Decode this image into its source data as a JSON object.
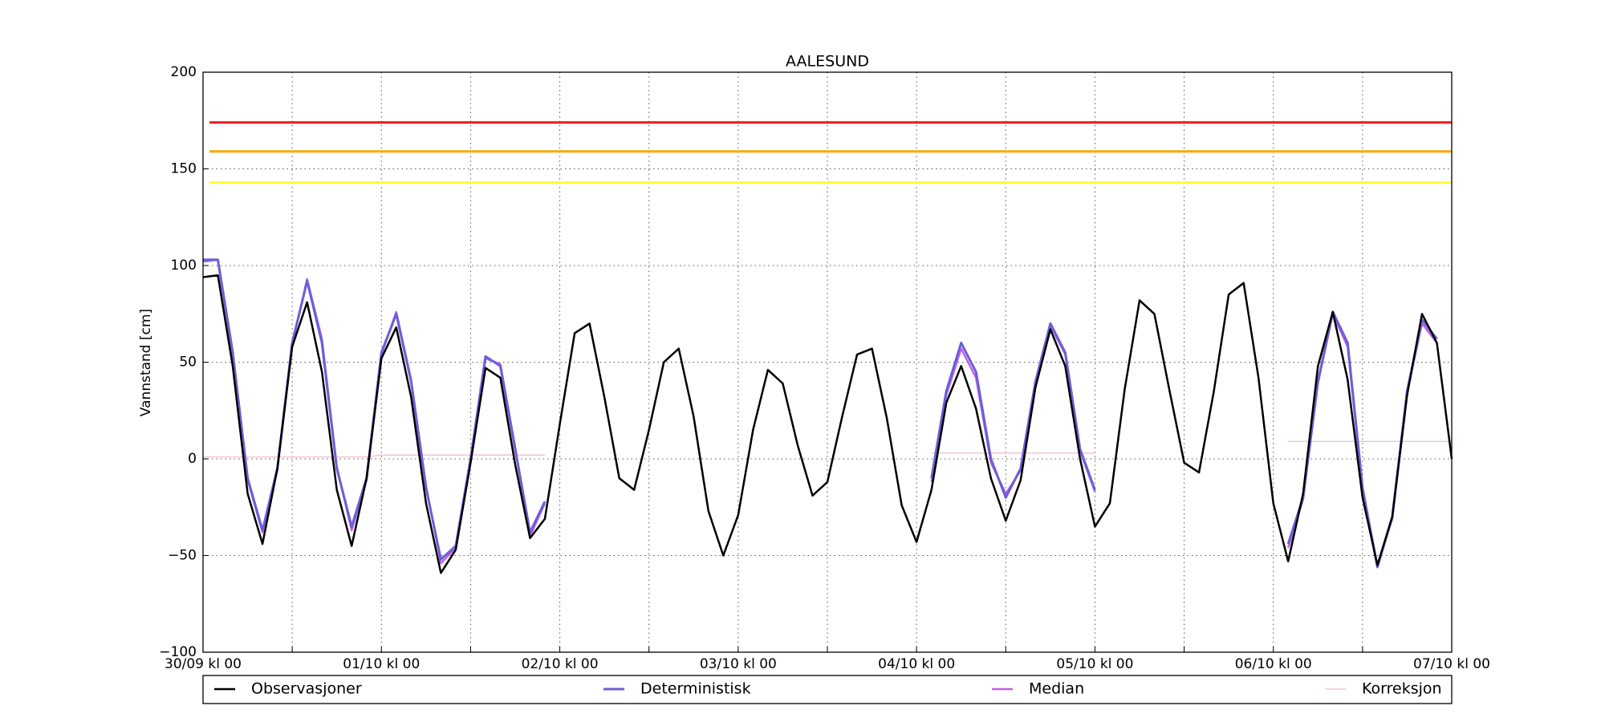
{
  "chart_data": {
    "type": "line",
    "title": "AALESUND",
    "y_label": "Vannstand [cm]",
    "x": [
      0,
      2,
      4,
      6,
      8,
      10,
      12,
      14,
      16,
      18,
      20,
      22,
      24,
      26,
      28,
      30,
      32,
      34,
      36,
      38,
      40,
      42,
      44,
      46,
      48,
      50,
      52,
      54,
      56,
      58,
      60,
      62,
      64,
      66,
      68,
      70,
      72,
      74,
      76,
      78,
      80,
      82,
      84,
      86,
      88,
      90,
      92,
      94,
      96,
      98,
      100,
      102,
      104,
      106,
      108,
      110,
      112,
      114,
      116,
      118,
      120,
      122,
      124,
      126,
      128,
      130,
      132,
      134,
      136,
      138,
      140,
      142,
      144,
      146,
      148,
      150,
      152,
      154,
      156,
      158,
      160,
      162,
      164,
      166,
      168
    ],
    "series": [
      {
        "name": "Observasjoner",
        "color": "#000000",
        "width": 2.5,
        "values": [
          94,
          95,
          48,
          -18,
          -44,
          -5,
          58,
          81,
          45,
          -16,
          -45,
          -10,
          52,
          68,
          32,
          -23,
          -59,
          -47,
          -2,
          47,
          42,
          -3,
          -41,
          -31,
          18,
          65,
          70,
          32,
          -10,
          -16,
          15,
          50,
          57,
          22,
          -27,
          -50,
          -29,
          15,
          46,
          39,
          7,
          -19,
          -12,
          22,
          54,
          57,
          21,
          -24,
          -43,
          -16,
          29,
          48,
          26,
          -10,
          -32,
          -11,
          37,
          67,
          48,
          0,
          -35,
          -23,
          36,
          82,
          75,
          36,
          -2,
          -7,
          35,
          85,
          91,
          42,
          -23,
          -53,
          -18,
          48,
          76,
          41,
          -20,
          -55,
          -30,
          33,
          75,
          60,
          0
        ]
      },
      {
        "name": "Deterministisk",
        "color": "#6a5fd8",
        "width": 3,
        "values": [
          103,
          103,
          55,
          -10,
          -37,
          -5,
          60,
          92,
          60,
          -5,
          -35,
          -10,
          55,
          75,
          40,
          -15,
          -52,
          -45,
          0,
          53,
          48,
          5,
          -38,
          -22,
          null,
          null,
          null,
          null,
          null,
          null,
          null,
          null,
          null,
          null,
          null,
          null,
          null,
          null,
          null,
          null,
          null,
          null,
          null,
          null,
          null,
          null,
          null,
          null,
          null,
          -10,
          35,
          60,
          45,
          0,
          -20,
          -5,
          40,
          70,
          55,
          5,
          -16,
          null,
          null,
          null,
          null,
          null,
          null,
          null,
          null,
          null,
          null,
          null,
          null,
          -44,
          -20,
          40,
          76,
          60,
          -15,
          -56,
          -30,
          35,
          72,
          62,
          null
        ]
      },
      {
        "name": "Median",
        "color": "#c060e0",
        "width": 2.5,
        "values": [
          102,
          103,
          54,
          -11,
          -38,
          -6,
          59,
          93,
          62,
          -4,
          -37,
          -11,
          54,
          76,
          41,
          -14,
          -54,
          -46,
          -1,
          52,
          49,
          6,
          -40,
          -23,
          null,
          null,
          null,
          null,
          null,
          null,
          null,
          null,
          null,
          null,
          null,
          null,
          null,
          null,
          null,
          null,
          null,
          null,
          null,
          null,
          null,
          null,
          null,
          null,
          null,
          -12,
          33,
          57,
          42,
          -2,
          -18,
          -6,
          38,
          69,
          54,
          4,
          -17,
          null,
          null,
          null,
          null,
          null,
          null,
          null,
          null,
          null,
          null,
          null,
          null,
          -46,
          -21,
          39,
          75,
          58,
          -16,
          -55,
          -31,
          34,
          70,
          60,
          null
        ]
      },
      {
        "name": "Korreksjon",
        "color": "#f6c4cc",
        "width": 1.5,
        "values": [
          1,
          1,
          1,
          1,
          1,
          1,
          1,
          1,
          1,
          1,
          1,
          1,
          2,
          2,
          2,
          2,
          2,
          2,
          2,
          2,
          2,
          2,
          2,
          2,
          null,
          null,
          null,
          null,
          null,
          null,
          null,
          null,
          null,
          null,
          null,
          null,
          null,
          null,
          null,
          null,
          null,
          null,
          null,
          null,
          null,
          null,
          null,
          null,
          null,
          3,
          3,
          3,
          3,
          3,
          3,
          3,
          3,
          3,
          3,
          3,
          3,
          null,
          null,
          null,
          null,
          null,
          null,
          null,
          null,
          null,
          null,
          null,
          null,
          9,
          9,
          9,
          9,
          9,
          9,
          9,
          9,
          9,
          9,
          9,
          9
        ]
      }
    ],
    "hlines": [
      {
        "value": 174,
        "color": "#ff1a1a"
      },
      {
        "value": 159,
        "color": "#ffa500"
      },
      {
        "value": 143,
        "color": "#ffff33"
      }
    ],
    "xlim": [
      0,
      168
    ],
    "xticks": [
      {
        "value": 0,
        "label": "30/09 kl 00"
      },
      {
        "value": 24,
        "label": "01/10 kl 00"
      },
      {
        "value": 48,
        "label": "02/10 kl 00"
      },
      {
        "value": 72,
        "label": "03/10 kl 00"
      },
      {
        "value": 96,
        "label": "04/10 kl 00"
      },
      {
        "value": 120,
        "label": "05/10 kl 00"
      },
      {
        "value": 144,
        "label": "06/10 kl 00"
      },
      {
        "value": 168,
        "label": "07/10 kl 00"
      }
    ],
    "xminorticks": [
      12,
      36,
      60,
      84,
      108,
      132,
      156
    ],
    "ylim": [
      -100,
      200
    ],
    "yticks": [
      {
        "value": -100,
        "label": "−100"
      },
      {
        "value": -50,
        "label": "−50"
      },
      0,
      50,
      100,
      150,
      200
    ],
    "grid": true
  }
}
